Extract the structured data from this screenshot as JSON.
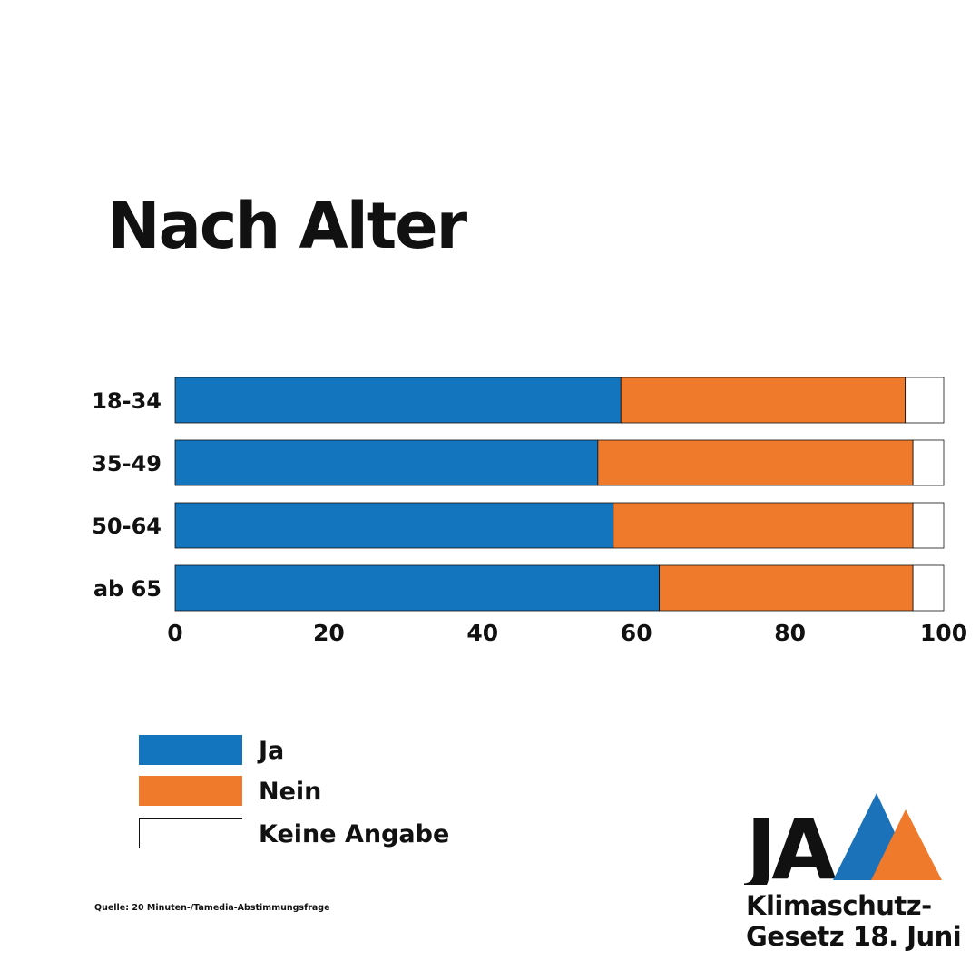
{
  "title": "Nach Alter",
  "colors": {
    "ja": "#1275bd",
    "nein": "#f07a2c",
    "keine": "#ffffff",
    "text": "#111111",
    "logo_blue": "#1b72b8",
    "logo_orange": "#f07a2c"
  },
  "chart_data": {
    "type": "bar",
    "orientation": "horizontal",
    "stacked": true,
    "title": "Nach Alter",
    "categories": [
      "18-34",
      "35-49",
      "50-64",
      "ab 65"
    ],
    "series": [
      {
        "name": "Ja",
        "values": [
          58,
          55,
          57,
          63
        ]
      },
      {
        "name": "Nein",
        "values": [
          37,
          41,
          39,
          33
        ]
      },
      {
        "name": "Keine Angabe",
        "values": [
          5,
          4,
          4,
          4
        ]
      }
    ],
    "xlim": [
      0,
      100
    ],
    "xticks": [
      0,
      20,
      40,
      60,
      80,
      100
    ],
    "xlabel": "",
    "ylabel": "",
    "legend_position": "bottom-left"
  },
  "legend": [
    {
      "label": "Ja",
      "color_key": "ja"
    },
    {
      "label": "Nein",
      "color_key": "nein"
    },
    {
      "label": "Keine Angabe",
      "color_key": "keine"
    }
  ],
  "source": "Quelle: 20 Minuten-/Tamedia-Abstimmungsfrage",
  "logo": {
    "word": "JA",
    "line1": "Klimaschutz-",
    "line2": "Gesetz 18. Juni"
  }
}
